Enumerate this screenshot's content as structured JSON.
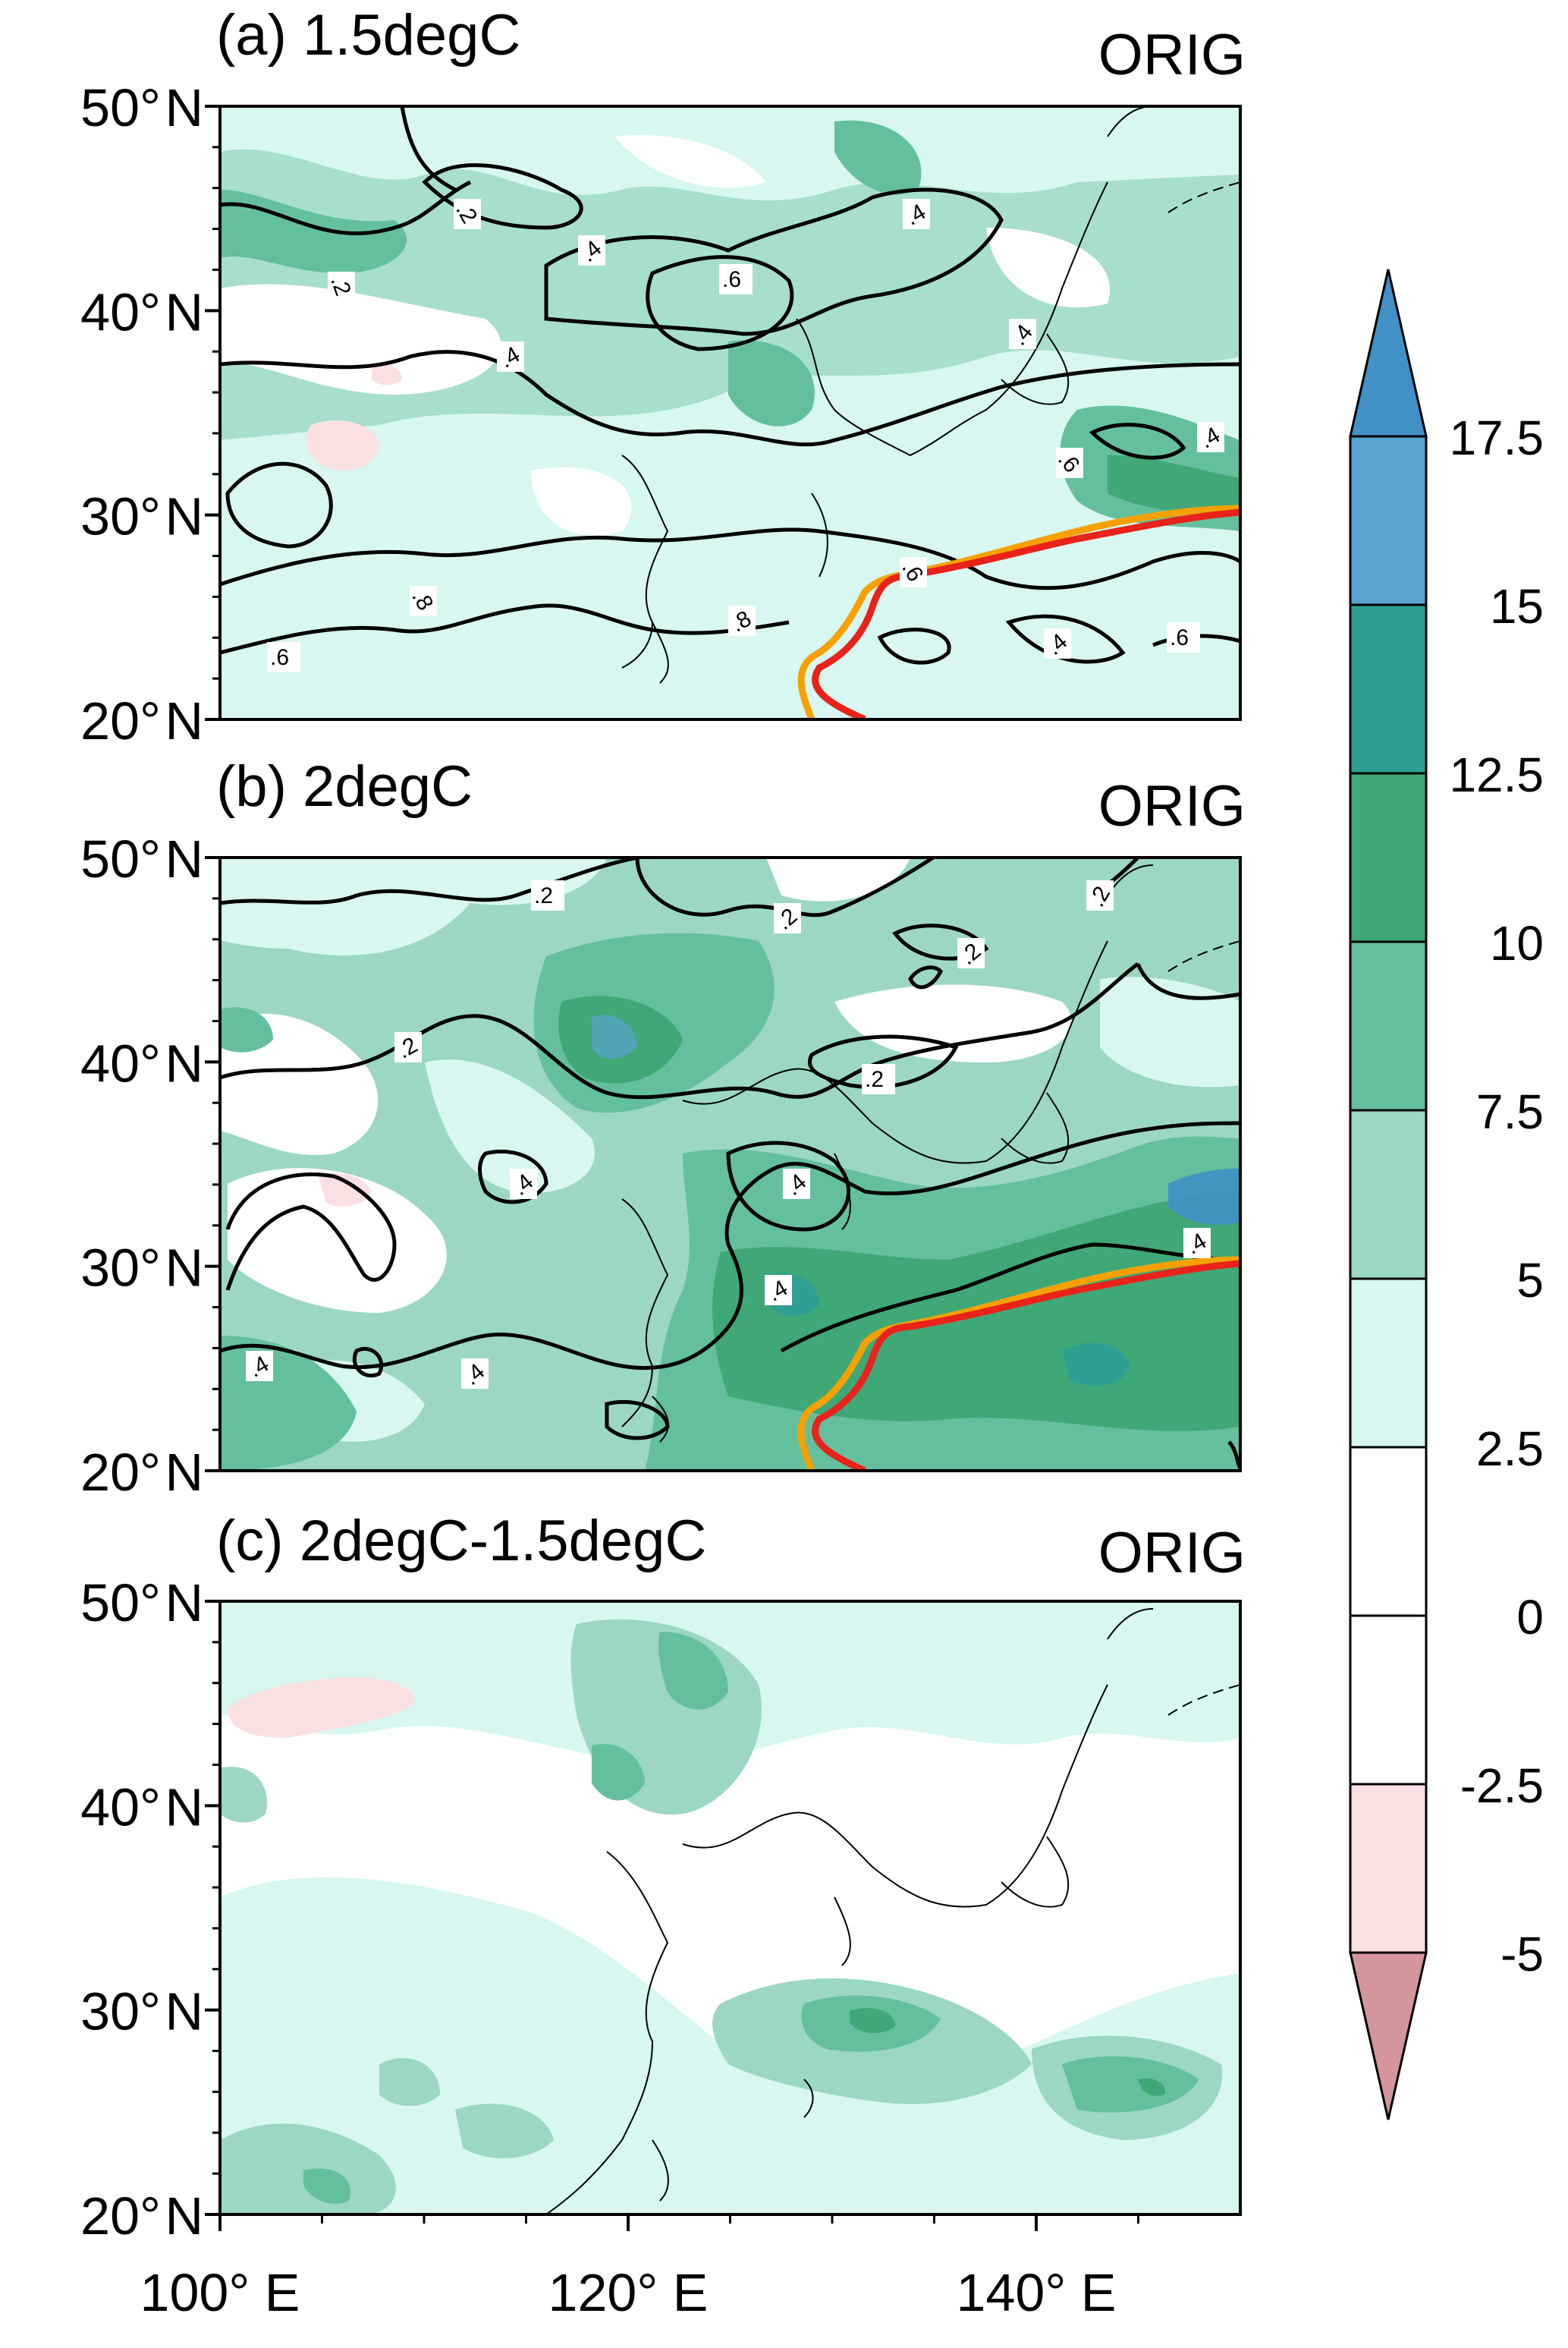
{
  "panels": [
    {
      "id": "a",
      "title": "(a)  1.5degC",
      "tag": "ORIG",
      "lines": true,
      "contour_labels": [
        ".2",
        ".2",
        ".4",
        ".4",
        ".4",
        ".6",
        ".4",
        ".6",
        ".4",
        ".8",
        ".8",
        ".6",
        ".6",
        ".4",
        ".6"
      ]
    },
    {
      "id": "b",
      "title": "(b)  2degC",
      "tag": "ORIG",
      "lines": true,
      "contour_labels": [
        ".2",
        ".2",
        ".2",
        ".2",
        ".2",
        ".2",
        ".4",
        ".4",
        ".4",
        ".4",
        ".4",
        ".4"
      ]
    },
    {
      "id": "c",
      "title": "(c) 2degC-1.5degC",
      "tag": "ORIG",
      "lines": false,
      "contour_labels": []
    }
  ],
  "latitude_labels": [
    "50° N",
    "40° N",
    "30° N",
    "20° N"
  ],
  "longitude_labels": [
    "100° E",
    "120° E",
    "140° E"
  ],
  "colorbar": {
    "labels": [
      "17.5",
      "15",
      "12.5",
      "10",
      "7.5",
      "5",
      "2.5",
      "0",
      "-2.5",
      "-5"
    ],
    "colors_top_to_bottom": [
      "#4190c6",
      "#5aa3cf",
      "#2f9f93",
      "#3fa876",
      "#64bf9d",
      "#9bd7c4",
      "#d7f7f0",
      "#ffffff",
      "#ffffff",
      "#fbe0e2",
      "#d4959b"
    ],
    "line_colors": {
      "red_line": "#e8231b",
      "orange_line": "#f7a100",
      "contours": "#000000"
    }
  }
}
